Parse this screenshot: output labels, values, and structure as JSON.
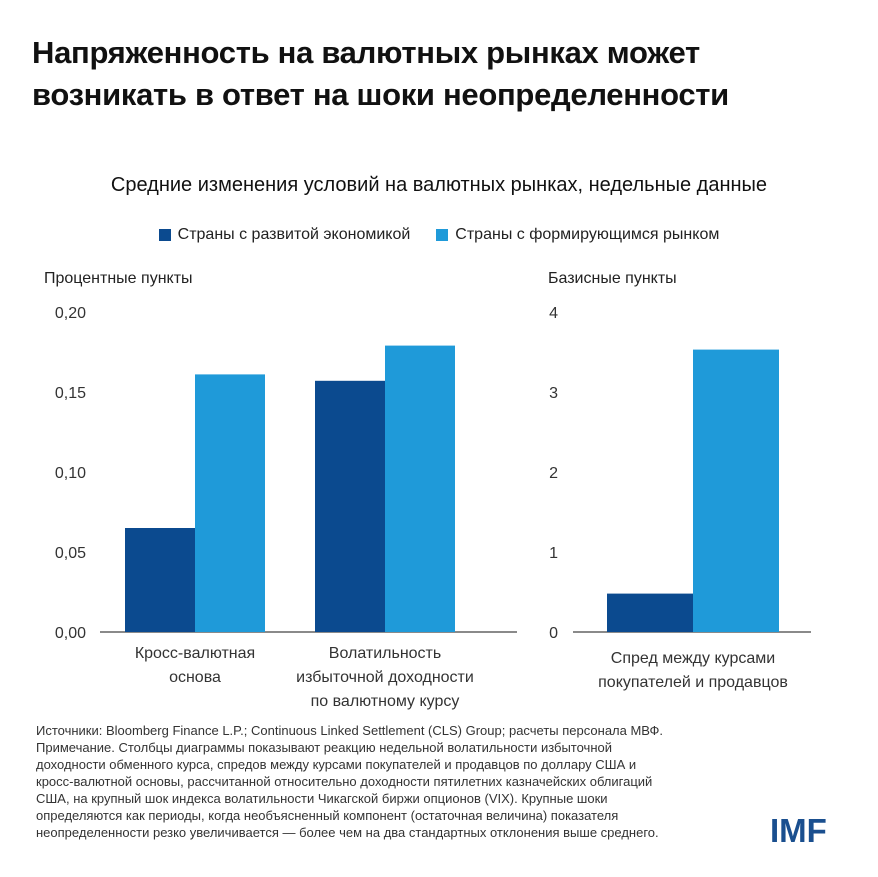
{
  "title": "Напряженность на валютных рынках может возникать в ответ на шоки неопределенности",
  "subtitle": "Средние изменения условий на валютных рынках, недельные данные",
  "legend": [
    {
      "label": "Страны с развитой экономикой",
      "color": "#0b4a8f"
    },
    {
      "label": "Страны с формирующимся рынком",
      "color": "#1f9ad9"
    }
  ],
  "chart_data": [
    {
      "type": "bar",
      "ylabel": "Процентные пункты",
      "ylim": [
        0,
        0.2
      ],
      "yticks": [
        "0,00",
        "0,05",
        "0,10",
        "0,15",
        "0,20"
      ],
      "grid": false,
      "categories": [
        [
          "Кросс-валютная",
          "основа"
        ],
        [
          "Волатильность",
          "избыточной доходности",
          "по валютному курсу"
        ]
      ],
      "series": [
        {
          "name": "Страны с развитой экономикой",
          "values": [
            0.065,
            0.157
          ]
        },
        {
          "name": "Страны с формирующимся рынком",
          "values": [
            0.161,
            0.179
          ]
        }
      ]
    },
    {
      "type": "bar",
      "ylabel": "Базисные пункты",
      "ylim": [
        0,
        4
      ],
      "yticks": [
        "0",
        "1",
        "2",
        "3",
        "4"
      ],
      "grid": false,
      "categories": [
        [
          "Спред между курсами",
          "покупателей и продавцов"
        ]
      ],
      "series": [
        {
          "name": "Страны с развитой экономикой",
          "values": [
            0.48
          ]
        },
        {
          "name": "Страны с формирующимся рынком",
          "values": [
            3.53
          ]
        }
      ]
    }
  ],
  "footnote": [
    "Источники: Bloomberg Finance L.P.; Continuous Linked Settlement (CLS) Group; расчеты персонала МВФ.",
    "Примечание. Столбцы диаграммы показывают реакцию недельной волатильности избыточной",
    "доходности обменного курса, спредов между курсами покупателей и продавцов по доллару США и",
    "кросс-валютной основы, рассчитанной относительно доходности пятилетних казначейских облигаций",
    "США, на крупный шок индекса волатильности Чикагской биржи опционов (VIX). Крупные шоки",
    "определяются как периоды, когда необъясненный компонент (остаточная величина) показателя",
    "неопределенности резко увеличивается — более чем на два стандартных отклонения выше среднего."
  ],
  "logo": "IMF"
}
